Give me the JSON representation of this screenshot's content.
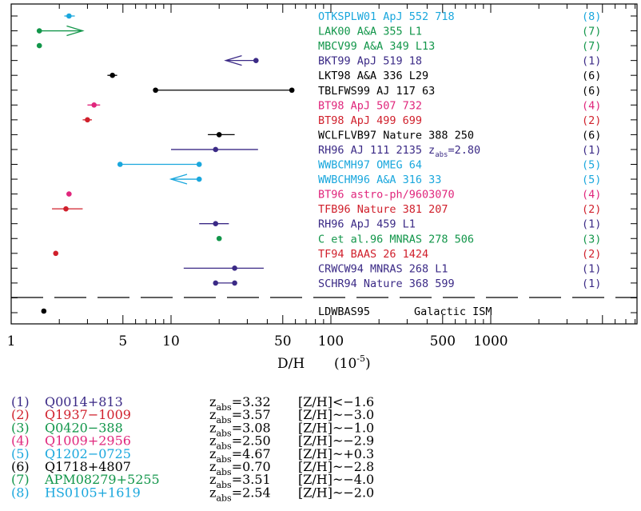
{
  "chart_data": {
    "type": "scatter",
    "xscale": "log",
    "xlim": [
      1,
      4000
    ],
    "xlabel": "D/H",
    "xlabel_unit": "(10",
    "xlabel_exp": "-5",
    "xlabel_close": ")",
    "xticks": [
      {
        "v": 1,
        "label": "1"
      },
      {
        "v": 5,
        "label": "5"
      },
      {
        "v": 10,
        "label": "10"
      },
      {
        "v": 50,
        "label": "50"
      },
      {
        "v": 100,
        "label": "100"
      },
      {
        "v": 500,
        "label": "500"
      },
      {
        "v": 1000,
        "label": "1000"
      }
    ],
    "series_colors": {
      "1": "#3b2a86",
      "2": "#d0202c",
      "3": "#12964a",
      "4": "#e0267c",
      "5": "#1aa7dd",
      "6": "#000000",
      "7": "#12964a",
      "8": "#1aa7dd"
    },
    "rows": [
      {
        "ref": "OTKSPLW01 ApJ 552 718",
        "sys": "(8)",
        "color": "#1aa7dd",
        "points": [
          {
            "x": 2.3,
            "lo": 2.15,
            "hi": 2.5
          }
        ]
      },
      {
        "ref": "LAK00 A&A 355 L1",
        "sys": "(7)",
        "color": "#12964a",
        "points": [
          {
            "x": 1.5,
            "limit": "lower",
            "to": 2.8
          }
        ]
      },
      {
        "ref": "MBCV99 A&A 349 L13",
        "sys": "(7)",
        "color": "#12964a",
        "points": [
          {
            "x": 1.5
          }
        ]
      },
      {
        "ref": "BKT99 ApJ 519 18",
        "sys": "(1)",
        "color": "#3b2a86",
        "points": [
          {
            "x": 34,
            "limit": "upper",
            "to": 22
          }
        ]
      },
      {
        "ref": "LKT98 A&A 336 L29",
        "sys": "(6)",
        "color": "#000000",
        "points": [
          {
            "x": 4.3,
            "lo": 4.0,
            "hi": 4.6
          }
        ]
      },
      {
        "ref": "TBLFWS99 AJ 117 63",
        "sys": "(6)",
        "color": "#000000",
        "points": [
          {
            "x": 8.0,
            "lo": 8.0,
            "hi": 57
          },
          {
            "x": 57
          }
        ]
      },
      {
        "ref": "BT98 ApJ 507 732",
        "sys": "(4)",
        "color": "#e0267c",
        "points": [
          {
            "x": 3.3,
            "lo": 3.0,
            "hi": 3.6
          }
        ]
      },
      {
        "ref": "BT98 ApJ 499 699",
        "sys": "(2)",
        "color": "#d0202c",
        "points": [
          {
            "x": 3.0,
            "lo": 2.8,
            "hi": 3.2
          }
        ]
      },
      {
        "ref": "WCLFLVB97 Nature 388 250",
        "sys": "(6)",
        "color": "#000000",
        "points": [
          {
            "x": 20,
            "lo": 17,
            "hi": 25
          }
        ]
      },
      {
        "ref": "RH96 AJ 111 2135",
        "ref_z": "z",
        "ref_z_sub": "abs",
        "ref_z_val": "=2.80",
        "sys": "(1)",
        "color": "#3b2a86",
        "points": [
          {
            "x": 19,
            "lo": 10,
            "hi": 35
          }
        ]
      },
      {
        "ref": "WWBCMH97 OMEG 64",
        "sys": "(5)",
        "color": "#1aa7dd",
        "points": [
          {
            "x": 4.8,
            "lo": 4.8,
            "hi": 15
          },
          {
            "x": 15
          }
        ]
      },
      {
        "ref": "WWBCHM96 A&A 316 33",
        "sys": "(5)",
        "color": "#1aa7dd",
        "points": [
          {
            "x": 15,
            "limit": "upper",
            "to": 10
          }
        ]
      },
      {
        "ref": "BT96 astro-ph/9603070",
        "sys": "(4)",
        "color": "#e0267c",
        "points": [
          {
            "x": 2.3
          }
        ]
      },
      {
        "ref": "TFB96 Nature 381 207",
        "sys": "(2)",
        "color": "#d0202c",
        "points": [
          {
            "x": 2.2,
            "lo": 1.8,
            "hi": 2.8
          }
        ]
      },
      {
        "ref": "RH96 ApJ 459 L1",
        "sys": "(1)",
        "color": "#3b2a86",
        "points": [
          {
            "x": 19,
            "lo": 15,
            "hi": 23
          }
        ]
      },
      {
        "ref": "C et al.96 MNRAS 278 506",
        "sys": "(3)",
        "color": "#12964a",
        "points": [
          {
            "x": 20
          }
        ]
      },
      {
        "ref": "TF94 BAAS 26 1424",
        "sys": "(2)",
        "color": "#d0202c",
        "points": [
          {
            "x": 1.9
          }
        ]
      },
      {
        "ref": "CRWCW94 MNRAS 268 L1",
        "sys": "(1)",
        "color": "#3b2a86",
        "points": [
          {
            "x": 25,
            "lo": 12,
            "hi": 38
          }
        ]
      },
      {
        "ref": "SCHR94 Nature 368 599",
        "sys": "(1)",
        "color": "#3b2a86",
        "points": [
          {
            "x": 19,
            "lo": 19,
            "hi": 25
          },
          {
            "x": 25
          }
        ]
      }
    ],
    "ism": {
      "ref": "LDWBAS95",
      "label": "Galactic ISM",
      "color": "#000000",
      "points": [
        {
          "x": 1.6
        }
      ]
    }
  },
  "legend": {
    "systems": [
      {
        "num": "(1)",
        "name": "Q0014+813",
        "color": "#3b2a86",
        "zval": "=3.32",
        "metal": "<−1.6"
      },
      {
        "num": "(2)",
        "name": "Q1937−1009",
        "color": "#d0202c",
        "zval": "=3.57",
        "metal": "~−3.0"
      },
      {
        "num": "(3)",
        "name": "Q0420−388",
        "color": "#12964a",
        "zval": "=3.08",
        "metal": "~−1.0"
      },
      {
        "num": "(4)",
        "name": "Q1009+2956",
        "color": "#e0267c",
        "zval": "=2.50",
        "metal": "~−2.9"
      },
      {
        "num": "(5)",
        "name": "Q1202−0725",
        "color": "#1aa7dd",
        "zval": "=4.67",
        "metal": "~+0.3"
      },
      {
        "num": "(6)",
        "name": "Q1718+4807",
        "color": "#000000",
        "zval": "=0.70",
        "metal": "~−2.8"
      },
      {
        "num": "(7)",
        "name": "APM08279+5255",
        "color": "#12964a",
        "zval": "=3.51",
        "metal": "~−4.0"
      },
      {
        "num": "(8)",
        "name": "HS0105+1619",
        "color": "#1aa7dd",
        "zval": "=2.54",
        "metal": "~−2.0"
      }
    ],
    "z": "z",
    "z_sub": "abs",
    "zh": "[Z/H]"
  }
}
